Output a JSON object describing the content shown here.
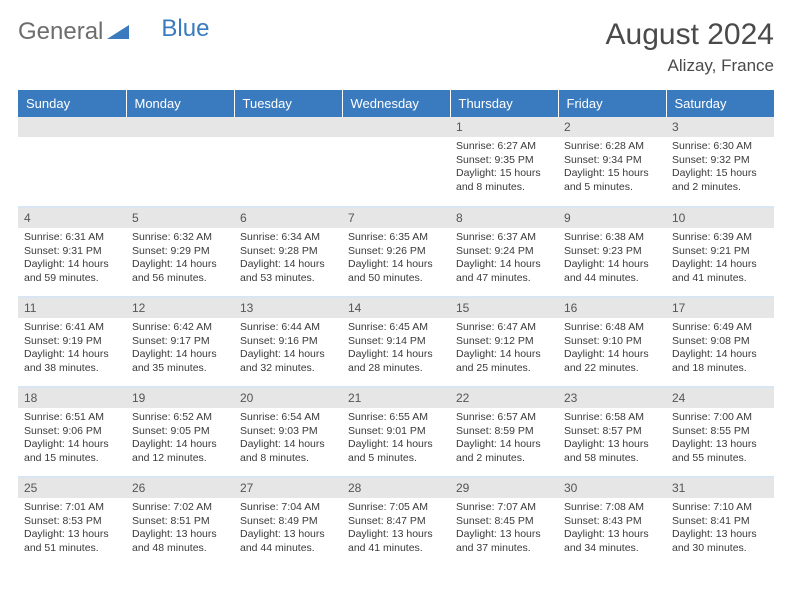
{
  "brand": {
    "part1": "General",
    "part2": "Blue",
    "text_color1": "#6d6d6d",
    "text_color2": "#3a7bbf"
  },
  "title": "August 2024",
  "location": "Alizay, France",
  "header_bg": "#3a7bbf",
  "header_fg": "#ffffff",
  "daynum_bg": "#e6e6e6",
  "cell_border": "#3a7bbf33",
  "text_color": "#3a3a3a",
  "title_fontsize": 30,
  "location_fontsize": 17,
  "header_fontsize": 13,
  "daynum_fontsize": 12,
  "data_fontsize": 10.5,
  "weekdays": [
    "Sunday",
    "Monday",
    "Tuesday",
    "Wednesday",
    "Thursday",
    "Friday",
    "Saturday"
  ],
  "weeks": [
    [
      null,
      null,
      null,
      null,
      {
        "n": "1",
        "sunrise": "6:27 AM",
        "sunset": "9:35 PM",
        "daylight": "15 hours and 8 minutes."
      },
      {
        "n": "2",
        "sunrise": "6:28 AM",
        "sunset": "9:34 PM",
        "daylight": "15 hours and 5 minutes."
      },
      {
        "n": "3",
        "sunrise": "6:30 AM",
        "sunset": "9:32 PM",
        "daylight": "15 hours and 2 minutes."
      }
    ],
    [
      {
        "n": "4",
        "sunrise": "6:31 AM",
        "sunset": "9:31 PM",
        "daylight": "14 hours and 59 minutes."
      },
      {
        "n": "5",
        "sunrise": "6:32 AM",
        "sunset": "9:29 PM",
        "daylight": "14 hours and 56 minutes."
      },
      {
        "n": "6",
        "sunrise": "6:34 AM",
        "sunset": "9:28 PM",
        "daylight": "14 hours and 53 minutes."
      },
      {
        "n": "7",
        "sunrise": "6:35 AM",
        "sunset": "9:26 PM",
        "daylight": "14 hours and 50 minutes."
      },
      {
        "n": "8",
        "sunrise": "6:37 AM",
        "sunset": "9:24 PM",
        "daylight": "14 hours and 47 minutes."
      },
      {
        "n": "9",
        "sunrise": "6:38 AM",
        "sunset": "9:23 PM",
        "daylight": "14 hours and 44 minutes."
      },
      {
        "n": "10",
        "sunrise": "6:39 AM",
        "sunset": "9:21 PM",
        "daylight": "14 hours and 41 minutes."
      }
    ],
    [
      {
        "n": "11",
        "sunrise": "6:41 AM",
        "sunset": "9:19 PM",
        "daylight": "14 hours and 38 minutes."
      },
      {
        "n": "12",
        "sunrise": "6:42 AM",
        "sunset": "9:17 PM",
        "daylight": "14 hours and 35 minutes."
      },
      {
        "n": "13",
        "sunrise": "6:44 AM",
        "sunset": "9:16 PM",
        "daylight": "14 hours and 32 minutes."
      },
      {
        "n": "14",
        "sunrise": "6:45 AM",
        "sunset": "9:14 PM",
        "daylight": "14 hours and 28 minutes."
      },
      {
        "n": "15",
        "sunrise": "6:47 AM",
        "sunset": "9:12 PM",
        "daylight": "14 hours and 25 minutes."
      },
      {
        "n": "16",
        "sunrise": "6:48 AM",
        "sunset": "9:10 PM",
        "daylight": "14 hours and 22 minutes."
      },
      {
        "n": "17",
        "sunrise": "6:49 AM",
        "sunset": "9:08 PM",
        "daylight": "14 hours and 18 minutes."
      }
    ],
    [
      {
        "n": "18",
        "sunrise": "6:51 AM",
        "sunset": "9:06 PM",
        "daylight": "14 hours and 15 minutes."
      },
      {
        "n": "19",
        "sunrise": "6:52 AM",
        "sunset": "9:05 PM",
        "daylight": "14 hours and 12 minutes."
      },
      {
        "n": "20",
        "sunrise": "6:54 AM",
        "sunset": "9:03 PM",
        "daylight": "14 hours and 8 minutes."
      },
      {
        "n": "21",
        "sunrise": "6:55 AM",
        "sunset": "9:01 PM",
        "daylight": "14 hours and 5 minutes."
      },
      {
        "n": "22",
        "sunrise": "6:57 AM",
        "sunset": "8:59 PM",
        "daylight": "14 hours and 2 minutes."
      },
      {
        "n": "23",
        "sunrise": "6:58 AM",
        "sunset": "8:57 PM",
        "daylight": "13 hours and 58 minutes."
      },
      {
        "n": "24",
        "sunrise": "7:00 AM",
        "sunset": "8:55 PM",
        "daylight": "13 hours and 55 minutes."
      }
    ],
    [
      {
        "n": "25",
        "sunrise": "7:01 AM",
        "sunset": "8:53 PM",
        "daylight": "13 hours and 51 minutes."
      },
      {
        "n": "26",
        "sunrise": "7:02 AM",
        "sunset": "8:51 PM",
        "daylight": "13 hours and 48 minutes."
      },
      {
        "n": "27",
        "sunrise": "7:04 AM",
        "sunset": "8:49 PM",
        "daylight": "13 hours and 44 minutes."
      },
      {
        "n": "28",
        "sunrise": "7:05 AM",
        "sunset": "8:47 PM",
        "daylight": "13 hours and 41 minutes."
      },
      {
        "n": "29",
        "sunrise": "7:07 AM",
        "sunset": "8:45 PM",
        "daylight": "13 hours and 37 minutes."
      },
      {
        "n": "30",
        "sunrise": "7:08 AM",
        "sunset": "8:43 PM",
        "daylight": "13 hours and 34 minutes."
      },
      {
        "n": "31",
        "sunrise": "7:10 AM",
        "sunset": "8:41 PM",
        "daylight": "13 hours and 30 minutes."
      }
    ]
  ],
  "labels": {
    "sunrise": "Sunrise:",
    "sunset": "Sunset:",
    "daylight": "Daylight:"
  }
}
